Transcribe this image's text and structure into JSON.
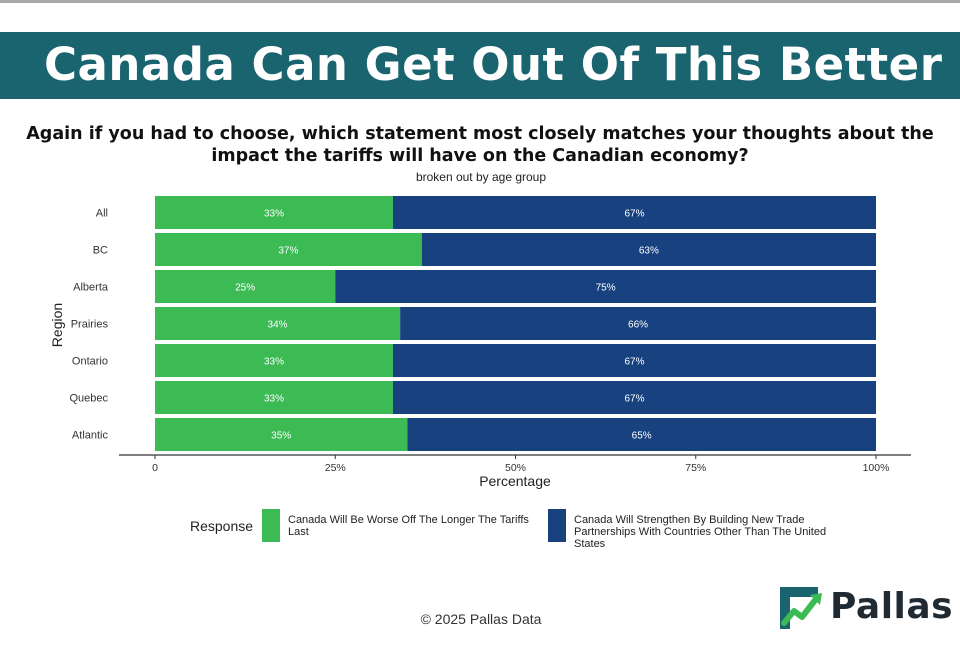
{
  "header": {
    "title": "Canada Can Get Out Of This Better"
  },
  "logo": {
    "name": "Pallas",
    "icon": "chart-arrow-icon"
  },
  "footer": {
    "copyright": "© 2025 Pallas Data"
  },
  "colors": {
    "banner": "#1a6470",
    "worse": "#3cba54",
    "strengthen": "#18427f"
  },
  "chart_data": {
    "type": "bar",
    "orientation": "horizontal",
    "stacked": true,
    "title": "Again if you had to choose, which statement most closely matches your thoughts about the impact the tariffs will have on the Canadian economy?",
    "subtitle": "broken out by age group",
    "xlabel": "Percentage",
    "ylabel": "Region",
    "xlim": [
      0,
      100
    ],
    "x_ticks": [
      "0",
      "25%",
      "50%",
      "75%",
      "100%"
    ],
    "categories": [
      "All",
      "BC",
      "Alberta",
      "Prairies",
      "Ontario",
      "Quebec",
      "Atlantic"
    ],
    "series": [
      {
        "name": "Canada Will Be Worse Off The Longer The Tariffs Last",
        "values": [
          33,
          37,
          25,
          34,
          33,
          33,
          35
        ],
        "labels": [
          "33%",
          "37%",
          "25%",
          "34%",
          "33%",
          "33%",
          "35%"
        ]
      },
      {
        "name": "Canada Will Strengthen By Building New Trade Partnerships With Countries Other Than The United States",
        "values": [
          67,
          63,
          75,
          66,
          67,
          67,
          65
        ],
        "labels": [
          "67%",
          "63%",
          "75%",
          "66%",
          "67%",
          "67%",
          "65%"
        ]
      }
    ],
    "grid": false,
    "legend": {
      "title": "Response",
      "position": "bottom"
    }
  }
}
